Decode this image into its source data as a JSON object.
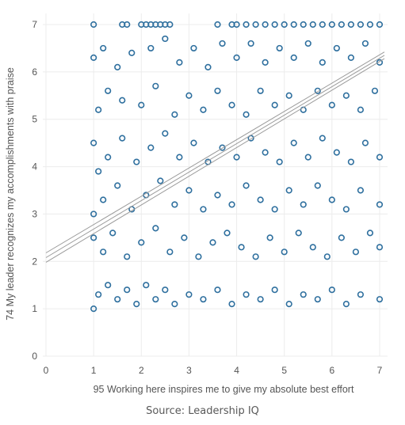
{
  "chart_data": {
    "type": "scatter",
    "title": "",
    "xlabel": "95 Working here inspires me to give my absolute best effort",
    "ylabel": "74 My leader recognizes my accomplishments with praise",
    "xlim": [
      0,
      7.1
    ],
    "ylim": [
      0,
      7.1
    ],
    "x_ticks": [
      0,
      1,
      2,
      3,
      4,
      5,
      6,
      7
    ],
    "y_ticks": [
      0,
      1,
      2,
      3,
      4,
      5,
      6,
      7
    ],
    "grid": true,
    "legend": "none",
    "marker": "hollow-circle",
    "series": [
      {
        "points": [
          [
            1,
            7
          ],
          [
            1.6,
            7
          ],
          [
            1.7,
            7
          ],
          [
            2,
            7
          ],
          [
            2.1,
            7
          ],
          [
            2.2,
            7
          ],
          [
            2.3,
            7
          ],
          [
            2.4,
            7
          ],
          [
            2.5,
            7
          ],
          [
            2.6,
            7
          ],
          [
            3.6,
            7
          ],
          [
            3.9,
            7
          ],
          [
            4,
            7
          ],
          [
            4.2,
            7
          ],
          [
            4.4,
            7
          ],
          [
            4.6,
            7
          ],
          [
            4.8,
            7
          ],
          [
            5,
            7
          ],
          [
            5.2,
            7
          ],
          [
            5.4,
            7
          ],
          [
            5.6,
            7
          ],
          [
            5.8,
            7
          ],
          [
            6,
            7
          ],
          [
            6.2,
            7
          ],
          [
            6.4,
            7
          ],
          [
            6.6,
            7
          ],
          [
            6.8,
            7
          ],
          [
            7,
            7
          ],
          [
            1,
            6.3
          ],
          [
            1.2,
            6.5
          ],
          [
            1.5,
            6.1
          ],
          [
            1.8,
            6.4
          ],
          [
            2.2,
            6.5
          ],
          [
            2.5,
            6.7
          ],
          [
            2.8,
            6.2
          ],
          [
            3.1,
            6.5
          ],
          [
            3.4,
            6.1
          ],
          [
            3.7,
            6.6
          ],
          [
            4,
            6.3
          ],
          [
            4.3,
            6.6
          ],
          [
            4.6,
            6.2
          ],
          [
            4.9,
            6.5
          ],
          [
            5.2,
            6.3
          ],
          [
            5.5,
            6.6
          ],
          [
            5.8,
            6.2
          ],
          [
            6.1,
            6.5
          ],
          [
            6.4,
            6.3
          ],
          [
            6.7,
            6.6
          ],
          [
            7,
            6.2
          ],
          [
            1.1,
            5.2
          ],
          [
            1.3,
            5.6
          ],
          [
            1.6,
            5.4
          ],
          [
            2,
            5.3
          ],
          [
            2.3,
            5.7
          ],
          [
            2.7,
            5.1
          ],
          [
            3,
            5.5
          ],
          [
            3.3,
            5.2
          ],
          [
            3.6,
            5.6
          ],
          [
            3.9,
            5.3
          ],
          [
            4.2,
            5.1
          ],
          [
            4.5,
            5.6
          ],
          [
            4.8,
            5.3
          ],
          [
            5.1,
            5.5
          ],
          [
            5.4,
            5.2
          ],
          [
            5.7,
            5.6
          ],
          [
            6,
            5.3
          ],
          [
            6.3,
            5.5
          ],
          [
            6.6,
            5.2
          ],
          [
            6.9,
            5.6
          ],
          [
            1,
            4.5
          ],
          [
            1.1,
            3.9
          ],
          [
            1.3,
            4.2
          ],
          [
            1.6,
            4.6
          ],
          [
            1.9,
            4.1
          ],
          [
            2.2,
            4.4
          ],
          [
            2.5,
            4.7
          ],
          [
            2.8,
            4.2
          ],
          [
            3.1,
            4.5
          ],
          [
            3.4,
            4.1
          ],
          [
            3.7,
            4.4
          ],
          [
            4,
            4.2
          ],
          [
            4.3,
            4.6
          ],
          [
            4.6,
            4.3
          ],
          [
            4.9,
            4.1
          ],
          [
            5.2,
            4.5
          ],
          [
            5.5,
            4.2
          ],
          [
            5.8,
            4.6
          ],
          [
            6.1,
            4.3
          ],
          [
            6.4,
            4.1
          ],
          [
            6.7,
            4.5
          ],
          [
            7,
            4.2
          ],
          [
            1,
            3
          ],
          [
            1.2,
            3.3
          ],
          [
            1.5,
            3.6
          ],
          [
            1.8,
            3.1
          ],
          [
            2.1,
            3.4
          ],
          [
            2.4,
            3.7
          ],
          [
            2.7,
            3.2
          ],
          [
            3,
            3.5
          ],
          [
            3.3,
            3.1
          ],
          [
            3.6,
            3.4
          ],
          [
            3.9,
            3.2
          ],
          [
            4.2,
            3.6
          ],
          [
            4.5,
            3.3
          ],
          [
            4.8,
            3.1
          ],
          [
            5.1,
            3.5
          ],
          [
            5.4,
            3.2
          ],
          [
            5.7,
            3.6
          ],
          [
            6,
            3.3
          ],
          [
            6.3,
            3.1
          ],
          [
            6.6,
            3.5
          ],
          [
            7,
            3.2
          ],
          [
            1,
            2.5
          ],
          [
            1.2,
            2.2
          ],
          [
            1.4,
            2.6
          ],
          [
            1.7,
            2.1
          ],
          [
            2,
            2.4
          ],
          [
            2.3,
            2.7
          ],
          [
            2.6,
            2.2
          ],
          [
            2.9,
            2.5
          ],
          [
            3.2,
            2.1
          ],
          [
            3.5,
            2.4
          ],
          [
            3.8,
            2.6
          ],
          [
            4.1,
            2.3
          ],
          [
            4.4,
            2.1
          ],
          [
            4.7,
            2.5
          ],
          [
            5,
            2.2
          ],
          [
            5.3,
            2.6
          ],
          [
            5.6,
            2.3
          ],
          [
            5.9,
            2.1
          ],
          [
            6.2,
            2.5
          ],
          [
            6.5,
            2.2
          ],
          [
            6.8,
            2.6
          ],
          [
            7,
            2.3
          ],
          [
            1,
            1
          ],
          [
            1.1,
            1.3
          ],
          [
            1.3,
            1.5
          ],
          [
            1.5,
            1.2
          ],
          [
            1.7,
            1.4
          ],
          [
            1.9,
            1.1
          ],
          [
            2.1,
            1.5
          ],
          [
            2.3,
            1.2
          ],
          [
            2.5,
            1.4
          ],
          [
            2.7,
            1.1
          ],
          [
            3,
            1.3
          ],
          [
            3.3,
            1.2
          ],
          [
            3.6,
            1.4
          ],
          [
            3.9,
            1.1
          ],
          [
            4.2,
            1.3
          ],
          [
            4.5,
            1.2
          ],
          [
            4.8,
            1.4
          ],
          [
            5.1,
            1.1
          ],
          [
            5.4,
            1.3
          ],
          [
            5.7,
            1.2
          ],
          [
            6,
            1.4
          ],
          [
            6.3,
            1.1
          ],
          [
            6.6,
            1.3
          ],
          [
            7,
            1.2
          ]
        ]
      }
    ],
    "trend_lines": [
      {
        "x": [
          0,
          7.1
        ],
        "y": [
          2.08,
          6.35
        ]
      },
      {
        "x": [
          0,
          7.1
        ],
        "y": [
          2.18,
          6.42
        ]
      },
      {
        "x": [
          0,
          7.1
        ],
        "y": [
          1.98,
          6.28
        ]
      }
    ],
    "source_note": "Source: Leadership IQ",
    "colors": {
      "marker": "#2e6f9e",
      "trend": "#9a9a9a",
      "grid": "#ececec",
      "text": "#555555"
    }
  }
}
